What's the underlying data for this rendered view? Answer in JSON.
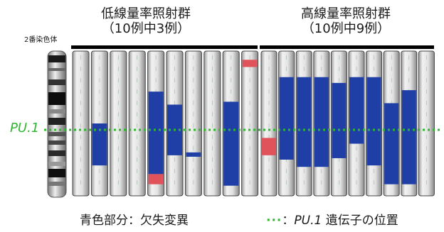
{
  "groups": {
    "low": {
      "title": "低線量率照射群",
      "subtitle": "（10例中3例）",
      "lanes": 10
    },
    "high": {
      "title": "高線量率照射群",
      "subtitle": "（10例中9例）",
      "lanes": 10
    }
  },
  "chromosome_label": "2番染色体",
  "marker_label": "PU.1",
  "legend": {
    "blue_text": "青色部分：欠失変異",
    "dots": "···",
    "colon": "：",
    "gene_name": "PU.1",
    "gene_text": " 遺伝子の位置"
  },
  "colors": {
    "deletion": "#1f3fa6",
    "marker": "#2fb82f",
    "red_segment": "#e0535a",
    "tube": "#d8d8d8"
  },
  "samples": {
    "low": [
      {
        "deletion": null,
        "red": null
      },
      {
        "deletion": [
          0.5,
          0.79
        ],
        "red": null
      },
      {
        "deletion": null,
        "red": null
      },
      {
        "deletion": null,
        "red": null
      },
      {
        "deletion": [
          0.28,
          0.85
        ],
        "red": [
          0.85,
          0.92
        ]
      },
      {
        "deletion": [
          0.37,
          0.72
        ],
        "red": null
      },
      {
        "deletion": [
          0.7,
          0.73
        ],
        "red": null
      },
      {
        "deletion": null,
        "red": null
      },
      {
        "deletion": [
          0.35,
          0.93
        ],
        "red": null
      },
      {
        "deletion": null,
        "red": [
          0.06,
          0.11
        ]
      }
    ],
    "high": [
      {
        "deletion": null,
        "red": [
          0.6,
          0.72
        ]
      },
      {
        "deletion": [
          0.18,
          0.75
        ],
        "red": null
      },
      {
        "deletion": [
          0.18,
          0.8
        ],
        "red": null
      },
      {
        "deletion": [
          0.18,
          0.8
        ],
        "red": null
      },
      {
        "deletion": [
          0.22,
          0.74
        ],
        "red": null
      },
      {
        "deletion": [
          0.18,
          0.64
        ],
        "red": null
      },
      {
        "deletion": [
          0.18,
          0.79
        ],
        "red": null
      },
      {
        "deletion": [
          0.36,
          0.92
        ],
        "red": null
      },
      {
        "deletion": [
          0.27,
          0.92
        ],
        "red": null
      },
      {
        "deletion": null,
        "red": null
      }
    ]
  }
}
